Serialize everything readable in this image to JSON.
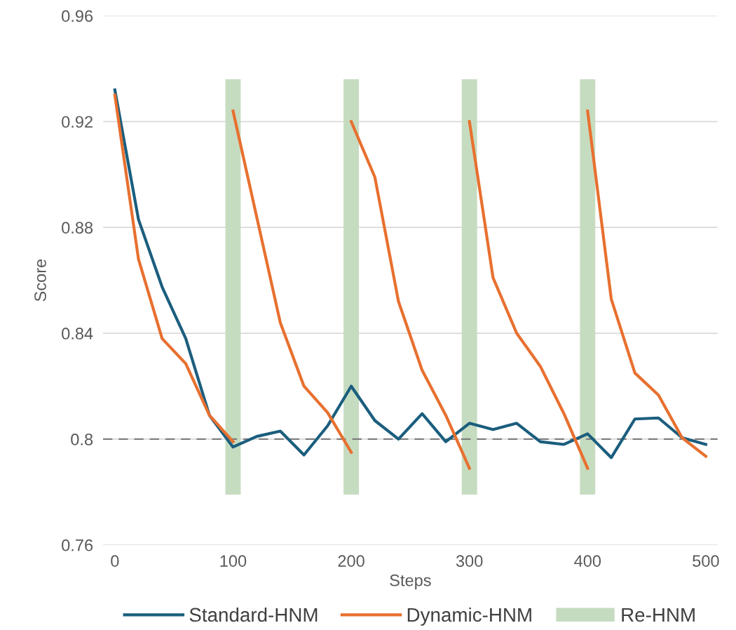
{
  "chart_data": {
    "type": "line",
    "xlabel": "Steps",
    "ylabel": "Score",
    "xlim": [
      -10,
      510
    ],
    "xticks": [
      0,
      100,
      200,
      300,
      400,
      500
    ],
    "ylim": [
      0.76,
      0.96
    ],
    "yticks": [
      0.76,
      0.8,
      0.84,
      0.88,
      0.92,
      0.96
    ],
    "grid": "y",
    "legend": "bottom",
    "marker": "none",
    "line_style": "solid",
    "ref_lines": [
      {
        "axis": "y",
        "value": 0.8,
        "label": null,
        "color": "#7f7f7f",
        "line_style": "dashed"
      }
    ],
    "series": [
      {
        "name": "Standard-HNM",
        "color": "#1b5e7e",
        "x": [
          0,
          20,
          40,
          60,
          80,
          100,
          120,
          140,
          160,
          180,
          200,
          220,
          240,
          260,
          280,
          300,
          320,
          340,
          360,
          380,
          400,
          420,
          440,
          460,
          480,
          500
        ],
        "values": [
          0.932,
          0.883,
          0.8575,
          0.838,
          0.809,
          0.797,
          0.801,
          0.803,
          0.794,
          0.805,
          0.82,
          0.807,
          0.8,
          0.8096,
          0.799,
          0.806,
          0.8036,
          0.806,
          0.799,
          0.798,
          0.802,
          0.793,
          0.8076,
          0.808,
          0.8005,
          0.798
        ]
      },
      {
        "name": "Dynamic-HNM",
        "color": "#e8702f",
        "x": [
          0,
          20,
          40,
          60,
          80,
          100
        ],
        "values": [
          0.93,
          0.868,
          0.838,
          0.8285,
          0.809,
          0.799
        ]
      },
      {
        "color": "#e8702f",
        "x": [
          100,
          120,
          140,
          160,
          180,
          200
        ],
        "values": [
          0.924,
          0.884,
          0.844,
          0.82,
          0.81,
          0.795
        ]
      },
      {
        "color": "#e8702f",
        "x": [
          200,
          220,
          240,
          260,
          280,
          300
        ],
        "values": [
          0.92,
          0.899,
          0.852,
          0.826,
          0.809,
          0.789
        ]
      },
      {
        "color": "#e8702f",
        "x": [
          300,
          320,
          340,
          360,
          380,
          400
        ],
        "values": [
          0.92,
          0.861,
          0.84,
          0.8275,
          0.8096,
          0.789
        ]
      },
      {
        "color": "#e8702f",
        "x": [
          400,
          420,
          440,
          460,
          480,
          500
        ],
        "values": [
          0.924,
          0.853,
          0.825,
          0.8166,
          0.8005,
          0.7935
        ]
      },
      {
        "name": "Re-HNM",
        "type": "bar",
        "color": "#c6dcc0",
        "x": [
          100,
          200,
          300,
          400
        ],
        "base": [
          0.779,
          0.779,
          0.779,
          0.779
        ],
        "values": [
          0.157,
          0.157,
          0.157,
          0.157
        ]
      }
    ]
  }
}
